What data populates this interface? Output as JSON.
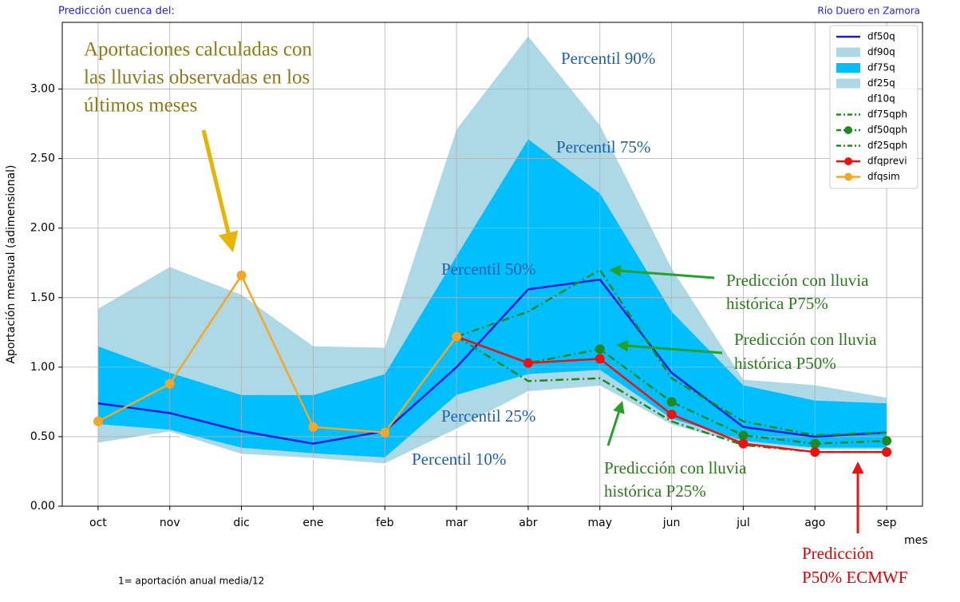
{
  "chart_data": {
    "type": "line",
    "title": "Predicción cuenca del:",
    "subtitle": "Río Duero en Zamora",
    "y_label": "Aportación mensual (adimensional)",
    "x_label": "mes",
    "footnote": "1= aportación anual media/12",
    "categories": [
      "oct",
      "nov",
      "dic",
      "ene",
      "feb",
      "mar",
      "abr",
      "may",
      "jun",
      "jul",
      "ago",
      "sep"
    ],
    "ylim": [
      0,
      3.48
    ],
    "yticks": [
      {
        "value": 0,
        "label": "0.00"
      },
      {
        "value": 0.5,
        "label": "0.50"
      },
      {
        "value": 1,
        "label": "1.00"
      },
      {
        "value": 1.5,
        "label": "1.50"
      },
      {
        "value": 2,
        "label": "2.00"
      },
      {
        "value": 2.5,
        "label": "2.50"
      },
      {
        "value": 3,
        "label": "3.00"
      }
    ],
    "grid": true,
    "legend": "upper right",
    "series": [
      {
        "name": "df50q",
        "color": "#1a1ae0",
        "style": "line",
        "values": [
          0.74,
          0.67,
          0.54,
          0.45,
          0.54,
          1.0,
          1.56,
          1.63,
          0.96,
          0.57,
          0.5,
          0.53
        ]
      },
      {
        "name": "df90q",
        "color": "#add8e6",
        "style": "band",
        "values": [
          1.42,
          1.72,
          1.52,
          1.15,
          1.14,
          2.71,
          3.38,
          2.74,
          1.71,
          0.91,
          0.87,
          0.78
        ]
      },
      {
        "name": "df75q",
        "color": "#00bfff",
        "style": "band",
        "values": [
          1.15,
          0.96,
          0.8,
          0.8,
          0.95,
          1.8,
          2.64,
          2.25,
          1.4,
          0.87,
          0.76,
          0.74
        ]
      },
      {
        "name": "df25q",
        "color": "#add8e6",
        "style": "band",
        "values": [
          0.59,
          0.55,
          0.42,
          0.38,
          0.35,
          0.8,
          0.95,
          0.98,
          0.63,
          0.47,
          0.42,
          0.42
        ]
      },
      {
        "name": "df10q",
        "color": "#ffffff",
        "style": "line",
        "values": [
          0.45,
          0.53,
          0.37,
          0.34,
          0.3,
          0.55,
          0.82,
          0.86,
          0.58,
          0.44,
          0.4,
          0.4
        ]
      },
      {
        "name": "df75qph",
        "color": "#1e8a1e",
        "style": "dashdot",
        "values": [
          null,
          null,
          null,
          null,
          null,
          1.22,
          1.4,
          1.7,
          0.92,
          0.61,
          0.51,
          0.53
        ]
      },
      {
        "name": "df50qph",
        "color": "#1e8a1e",
        "style": "dashdot-marker",
        "values": [
          null,
          null,
          null,
          null,
          null,
          1.22,
          1.03,
          1.13,
          0.75,
          0.51,
          0.45,
          0.47
        ]
      },
      {
        "name": "df25qph",
        "color": "#1e8a1e",
        "style": "dashdot",
        "values": [
          null,
          null,
          null,
          null,
          null,
          1.22,
          0.9,
          0.92,
          0.61,
          0.44,
          0.39,
          0.39
        ]
      },
      {
        "name": "dfqprevi",
        "color": "#ee1111",
        "style": "line-marker",
        "values": [
          null,
          null,
          null,
          null,
          null,
          1.22,
          1.03,
          1.06,
          0.66,
          0.45,
          0.39,
          0.39
        ]
      },
      {
        "name": "dfqsim",
        "color": "#f5a623",
        "style": "line-marker",
        "values": [
          0.61,
          0.88,
          1.66,
          0.57,
          0.53,
          1.22,
          null,
          null,
          null,
          null,
          null,
          null
        ]
      }
    ],
    "annotations": [
      {
        "lines": [
          "Aportaciones calculadas con",
          "las lluvias observadas en los",
          "últimos meses"
        ],
        "color": "#8c7a18"
      },
      {
        "lines": [
          "Percentil 90%"
        ],
        "color": "#1f5fa8"
      },
      {
        "lines": [
          "Percentil 75%"
        ],
        "color": "#1f5fa8"
      },
      {
        "lines": [
          "Percentil 50%"
        ],
        "color": "#1f5fa8"
      },
      {
        "lines": [
          "Percentil 25%"
        ],
        "color": "#1f5fa8"
      },
      {
        "lines": [
          "Percentil 10%"
        ],
        "color": "#1f5fa8"
      },
      {
        "lines": [
          "Predicción con lluvia",
          "histórica P75%"
        ],
        "color": "#2a7a1a"
      },
      {
        "lines": [
          "Predicción con lluvia",
          "histórica P50%"
        ],
        "color": "#2a7a1a"
      },
      {
        "lines": [
          "Predicción con lluvia",
          "histórica P25%"
        ],
        "color": "#2a7a1a"
      },
      {
        "lines": [
          "Predicción",
          "P50% ECMWF"
        ],
        "color": "#e00000"
      }
    ]
  }
}
